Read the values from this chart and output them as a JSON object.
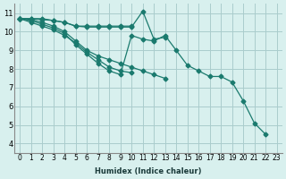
{
  "xlabel": "Humidex (Indice chaleur)",
  "ylabel": "",
  "bg_color": "#d8f0ee",
  "grid_color": "#aacccc",
  "line_color": "#1a7a6e",
  "xlim": [
    -0.5,
    23.5
  ],
  "ylim": [
    3.5,
    11.5
  ],
  "xticks": [
    0,
    1,
    2,
    3,
    4,
    5,
    6,
    7,
    8,
    9,
    10,
    11,
    12,
    13,
    14,
    15,
    16,
    17,
    18,
    19,
    20,
    21,
    22,
    23
  ],
  "yticks": [
    4,
    5,
    6,
    7,
    8,
    9,
    10,
    11
  ],
  "series": [
    [
      10.7,
      10.7,
      10.7,
      10.6,
      10.5,
      10.3,
      10.3,
      10.3,
      10.3,
      10.3,
      10.3,
      null,
      null,
      null,
      null,
      null,
      null,
      null,
      null,
      null,
      null,
      null,
      null,
      null
    ],
    [
      10.7,
      10.7,
      10.65,
      10.6,
      10.5,
      10.3,
      10.25,
      10.25,
      10.25,
      10.25,
      10.25,
      11.1,
      9.6,
      9.7,
      null,
      null,
      null,
      null,
      null,
      null,
      null,
      null,
      null,
      null
    ],
    [
      10.7,
      10.65,
      10.5,
      10.3,
      10.0,
      9.5,
      9.0,
      8.7,
      8.5,
      8.3,
      8.1,
      7.9,
      7.7,
      7.5,
      null,
      null,
      null,
      null,
      null,
      null,
      null,
      null,
      null,
      null
    ],
    [
      10.7,
      10.5,
      10.3,
      10.1,
      9.8,
      9.4,
      8.9,
      8.5,
      8.1,
      7.9,
      7.8,
      null,
      null,
      null,
      null,
      null,
      null,
      null,
      null,
      null,
      null,
      null,
      null,
      null
    ],
    [
      10.7,
      10.6,
      10.4,
      10.2,
      9.9,
      9.3,
      8.8,
      8.3,
      7.9,
      7.7,
      9.8,
      9.6,
      9.5,
      9.8,
      9.0,
      8.2,
      7.9,
      7.6,
      7.6,
      7.3,
      6.3,
      5.1,
      4.5,
      null
    ]
  ]
}
